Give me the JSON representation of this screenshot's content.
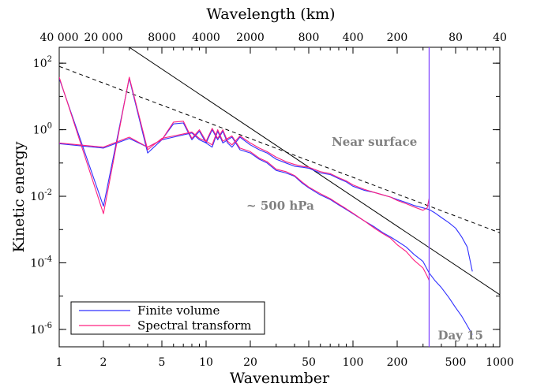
{
  "chart_data": {
    "type": "line",
    "xscale": "log",
    "yscale": "log",
    "xlim": [
      1,
      1000
    ],
    "ylim": [
      3e-07,
      300
    ],
    "xlabel": "Wavenumber",
    "ylabel": "Kinetic energy",
    "top_xlabel": "Wavelength (km)",
    "x_ticks": [
      {
        "value": 1,
        "label": "1"
      },
      {
        "value": 2,
        "label": "2"
      },
      {
        "value": 5,
        "label": "5"
      },
      {
        "value": 10,
        "label": "10"
      },
      {
        "value": 20,
        "label": "20"
      },
      {
        "value": 50,
        "label": "50"
      },
      {
        "value": 100,
        "label": "100"
      },
      {
        "value": 200,
        "label": "200"
      },
      {
        "value": 500,
        "label": "500"
      },
      {
        "value": 1000,
        "label": "1000"
      }
    ],
    "top_ticks": [
      {
        "value": 1,
        "label": "40 000"
      },
      {
        "value": 2,
        "label": "20 000"
      },
      {
        "value": 5,
        "label": "8000"
      },
      {
        "value": 10,
        "label": "4000"
      },
      {
        "value": 20,
        "label": "2000"
      },
      {
        "value": 50,
        "label": "800"
      },
      {
        "value": 100,
        "label": "400"
      },
      {
        "value": 200,
        "label": "200"
      },
      {
        "value": 500,
        "label": "80"
      },
      {
        "value": 1000,
        "label": "40"
      }
    ],
    "y_ticks": [
      {
        "value": 100,
        "base": "10",
        "exp": "2"
      },
      {
        "value": 1,
        "base": "10",
        "exp": "0"
      },
      {
        "value": 0.01,
        "base": "10",
        "exp": "-2"
      },
      {
        "value": 0.0001,
        "base": "10",
        "exp": "-4"
      },
      {
        "value": 1e-06,
        "base": "10",
        "exp": "-6"
      }
    ],
    "reference_lines": [
      {
        "style": "solid",
        "x": [
          3,
          1000
        ],
        "y": [
          300,
          1.1e-05
        ]
      },
      {
        "style": "dashed",
        "x": [
          1,
          1000
        ],
        "y": [
          80,
          0.0008
        ]
      }
    ],
    "cutoff_x": 330,
    "annotations": [
      {
        "text": "Near surface",
        "x": 140,
        "y": 0.33
      },
      {
        "text": "~ 500 hPa",
        "x": 32,
        "y": 0.004
      },
      {
        "text": "Day 15",
        "x": 540,
        "y": 5e-07
      }
    ],
    "series": [
      {
        "name": "Finite volume",
        "color": "#3030ff",
        "curves": [
          {
            "x": [
              1,
              2,
              3,
              4,
              5,
              6,
              7,
              8,
              9,
              10,
              11,
              12,
              13,
              14,
              15,
              17,
              20,
              23,
              26,
              30,
              35,
              40,
              45,
              50,
              60,
              70,
              80,
              90,
              100,
              120,
              140,
              160,
              180,
              200,
              230,
              260,
              300,
              330,
              360,
              400,
              450,
              500,
              550,
              600,
              650
            ],
            "y": [
              0.38,
              0.28,
              0.55,
              0.3,
              0.5,
              1.5,
              1.6,
              0.5,
              0.9,
              0.4,
              1.0,
              0.5,
              0.9,
              0.4,
              0.3,
              0.6,
              0.35,
              0.25,
              0.2,
              0.13,
              0.1,
              0.08,
              0.075,
              0.07,
              0.05,
              0.045,
              0.034,
              0.027,
              0.02,
              0.015,
              0.013,
              0.011,
              0.0095,
              0.008,
              0.0065,
              0.0053,
              0.0045,
              0.004,
              0.0032,
              0.0023,
              0.0016,
              0.0011,
              0.0006,
              0.0003,
              5.5e-05
            ]
          },
          {
            "x": [
              1,
              2,
              3,
              4,
              5,
              6,
              7,
              8,
              9,
              10,
              11,
              12,
              13,
              14,
              15,
              17,
              20,
              23,
              26,
              30,
              35,
              40,
              45,
              50,
              60,
              70,
              80,
              90,
              100,
              120,
              140,
              160,
              180,
              200,
              230,
              260,
              300,
              330,
              360,
              400,
              450,
              500,
              550,
              600,
              650
            ],
            "y": [
              35,
              0.005,
              35,
              0.2,
              0.5,
              0.6,
              0.7,
              0.8,
              0.5,
              0.4,
              0.3,
              0.9,
              0.4,
              0.5,
              0.6,
              0.25,
              0.2,
              0.13,
              0.1,
              0.06,
              0.05,
              0.04,
              0.025,
              0.018,
              0.011,
              0.008,
              0.0055,
              0.004,
              0.003,
              0.0018,
              0.0012,
              0.0008,
              0.0006,
              0.00045,
              0.0003,
              0.00018,
              0.00011,
              5e-05,
              3e-05,
              1.8e-05,
              9e-06,
              4.5e-06,
              2.5e-06,
              1.3e-06,
              7e-07
            ]
          }
        ]
      },
      {
        "name": "Spectral transform",
        "color": "#ff2080",
        "curves": [
          {
            "x": [
              1,
              2,
              3,
              4,
              5,
              6,
              7,
              8,
              9,
              10,
              11,
              12,
              13,
              14,
              15,
              17,
              20,
              23,
              26,
              30,
              35,
              40,
              45,
              50,
              60,
              70,
              80,
              90,
              100,
              120,
              140,
              160,
              180,
              200,
              230,
              260,
              300,
              320,
              330
            ],
            "y": [
              0.4,
              0.3,
              0.6,
              0.3,
              0.5,
              1.7,
              1.8,
              0.55,
              1.0,
              0.45,
              1.1,
              0.55,
              1.0,
              0.45,
              0.35,
              0.65,
              0.4,
              0.28,
              0.22,
              0.15,
              0.11,
              0.09,
              0.08,
              0.075,
              0.055,
              0.048,
              0.036,
              0.029,
              0.022,
              0.016,
              0.013,
              0.011,
              0.0095,
              0.0075,
              0.006,
              0.0048,
              0.0038,
              0.0045,
              0.0085
            ]
          },
          {
            "x": [
              1,
              2,
              3,
              4,
              5,
              6,
              7,
              8,
              9,
              10,
              11,
              12,
              13,
              14,
              15,
              17,
              20,
              23,
              26,
              30,
              35,
              40,
              45,
              50,
              60,
              70,
              80,
              90,
              100,
              120,
              140,
              160,
              180,
              200,
              230,
              260,
              300,
              320,
              330
            ],
            "y": [
              38,
              0.003,
              38,
              0.25,
              0.55,
              0.65,
              0.75,
              0.85,
              0.55,
              0.45,
              0.35,
              1.0,
              0.45,
              0.55,
              0.65,
              0.28,
              0.22,
              0.14,
              0.11,
              0.065,
              0.055,
              0.042,
              0.027,
              0.019,
              0.012,
              0.0085,
              0.0058,
              0.0042,
              0.0031,
              0.0018,
              0.0011,
              0.00075,
              0.00055,
              0.00035,
              0.00022,
              0.00012,
              7e-05,
              4e-05,
              3e-05
            ]
          }
        ]
      }
    ]
  }
}
